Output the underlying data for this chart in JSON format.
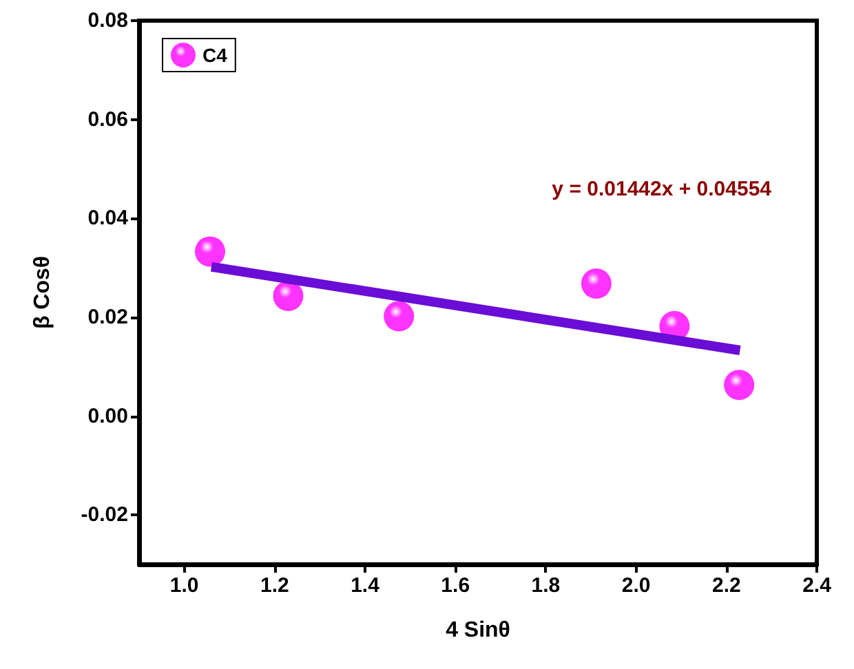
{
  "chart_data": {
    "type": "scatter",
    "xlabel": "4 Sinθ",
    "ylabel": "β Cosθ",
    "annotations": [
      "y = 0.01442x + 0.04554"
    ],
    "series": [
      {
        "name": "C4",
        "color": "#ff00ff",
        "marker": "circle",
        "x": [
          1.057,
          1.23,
          1.475,
          1.912,
          2.085,
          2.228
        ],
        "values": [
          0.0333,
          0.0243,
          0.0202,
          0.0268,
          0.0182,
          0.0063
        ]
      },
      {
        "type": "line",
        "color": "#6a0dd6",
        "marker": "none",
        "line_style": "solid",
        "x": [
          1.06,
          2.23
        ],
        "values": [
          0.0302,
          0.0133
        ]
      }
    ],
    "xlim": [
      0.9,
      2.4
    ],
    "xticks": [
      {
        "value": 1.0,
        "label": "1.0"
      },
      {
        "value": 1.2,
        "label": "1.2"
      },
      {
        "value": 1.4,
        "label": "1.4"
      },
      {
        "value": 1.6,
        "label": "1.6"
      },
      {
        "value": 1.8,
        "label": "1.8"
      },
      {
        "value": 2.0,
        "label": "2.0"
      },
      {
        "value": 2.2,
        "label": "2.2"
      },
      {
        "value": 2.4,
        "label": "2.4"
      }
    ],
    "ylim": [
      -0.03,
      0.08
    ],
    "yticks": [
      {
        "value": -0.02,
        "label": "-0.02"
      },
      {
        "value": 0,
        "label": "0.00"
      },
      {
        "value": 0.02,
        "label": "0.02"
      },
      {
        "value": 0.04,
        "label": "0.04"
      },
      {
        "value": 0.06,
        "label": "0.06"
      },
      {
        "value": 0.08,
        "label": "0.08"
      }
    ],
    "grid": false,
    "legend": "top left"
  }
}
